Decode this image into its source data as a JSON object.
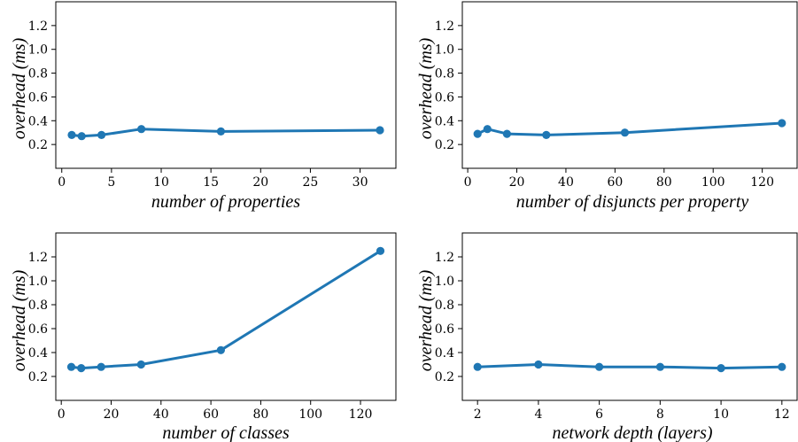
{
  "chart_data": [
    {
      "type": "line",
      "xlabel": "number of properties",
      "ylabel": "overhead (ms)",
      "xlim": [
        -0.6,
        33.6
      ],
      "ylim": [
        0.0,
        1.4
      ],
      "xticks": [
        0,
        5,
        10,
        15,
        20,
        25,
        30
      ],
      "yticks": [
        0.2,
        0.4,
        0.6,
        0.8,
        1.0,
        1.2
      ],
      "ytick_labels": [
        "0.2",
        "0.4",
        "0.6",
        "0.8",
        "1.0",
        "1.2"
      ],
      "series": [
        {
          "x": [
            1,
            2,
            4,
            8,
            16,
            32
          ],
          "y": [
            0.28,
            0.27,
            0.28,
            0.33,
            0.31,
            0.32
          ]
        }
      ],
      "grid": false
    },
    {
      "type": "line",
      "xlabel": "number of disjuncts per property",
      "ylabel": "overhead (ms)",
      "xlim": [
        -2.2,
        134.2
      ],
      "ylim": [
        0.0,
        1.4
      ],
      "xticks": [
        0,
        20,
        40,
        60,
        80,
        100,
        120
      ],
      "yticks": [
        0.2,
        0.4,
        0.6,
        0.8,
        1.0,
        1.2
      ],
      "ytick_labels": [
        "0.2",
        "0.4",
        "0.6",
        "0.8",
        "1.0",
        "1.2"
      ],
      "series": [
        {
          "x": [
            4,
            8,
            16,
            32,
            64,
            128
          ],
          "y": [
            0.29,
            0.33,
            0.29,
            0.28,
            0.3,
            0.38
          ]
        }
      ],
      "grid": false
    },
    {
      "type": "line",
      "xlabel": "number of classes",
      "ylabel": "overhead (ms)",
      "xlim": [
        -2.2,
        134.2
      ],
      "ylim": [
        0.0,
        1.4
      ],
      "xticks": [
        0,
        20,
        40,
        60,
        80,
        100,
        120
      ],
      "yticks": [
        0.2,
        0.4,
        0.6,
        0.8,
        1.0,
        1.2
      ],
      "ytick_labels": [
        "0.2",
        "0.4",
        "0.6",
        "0.8",
        "1.0",
        "1.2"
      ],
      "series": [
        {
          "x": [
            4,
            8,
            16,
            32,
            64,
            128
          ],
          "y": [
            0.28,
            0.27,
            0.28,
            0.3,
            0.42,
            1.25
          ]
        }
      ],
      "grid": false
    },
    {
      "type": "line",
      "xlabel": "network depth (layers)",
      "ylabel": "overhead (ms)",
      "xlim": [
        1.5,
        12.5
      ],
      "ylim": [
        0.0,
        1.4
      ],
      "xticks": [
        2,
        4,
        6,
        8,
        10,
        12
      ],
      "yticks": [
        0.2,
        0.4,
        0.6,
        0.8,
        1.0,
        1.2
      ],
      "ytick_labels": [
        "0.2",
        "0.4",
        "0.6",
        "0.8",
        "1.0",
        "1.2"
      ],
      "series": [
        {
          "x": [
            2,
            4,
            6,
            8,
            10,
            12
          ],
          "y": [
            0.28,
            0.3,
            0.28,
            0.28,
            0.27,
            0.28
          ]
        }
      ],
      "grid": false
    }
  ],
  "colors": {
    "series": "#1f77b4",
    "axes": "#000000"
  }
}
